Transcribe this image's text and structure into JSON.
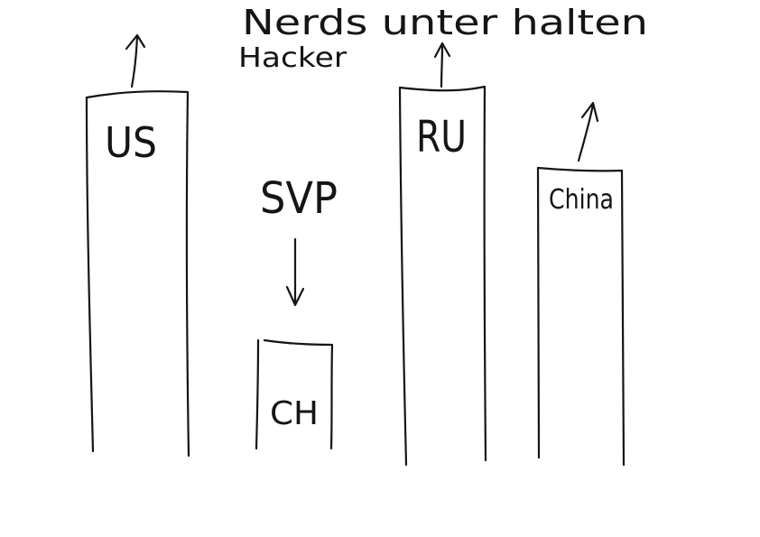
{
  "heading": {
    "line1": "Nerds unter halten",
    "line2": "Hacker"
  },
  "bars": [
    {
      "label": "US",
      "trend": "up"
    },
    {
      "label": "CH",
      "trend": "down"
    },
    {
      "label": "RU",
      "trend": "up"
    },
    {
      "label": "China",
      "trend": "up"
    }
  ],
  "annotations": {
    "party": "SVP"
  },
  "colors": {
    "ink": "#151515",
    "paper": "#ffffff"
  }
}
